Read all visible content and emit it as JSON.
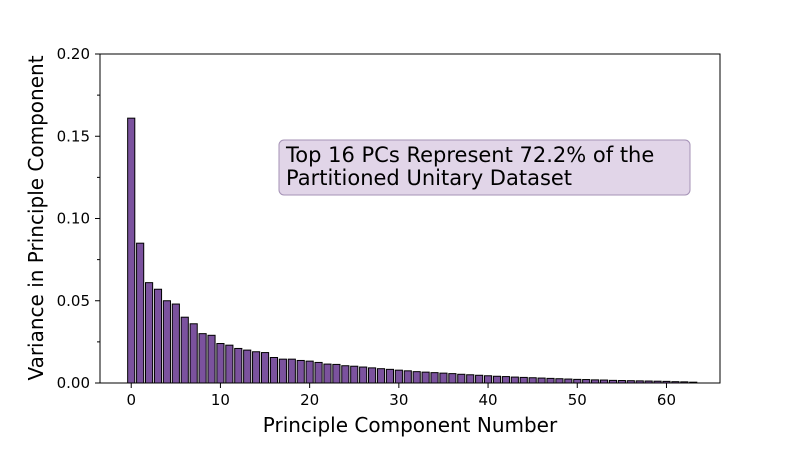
{
  "chart_data": {
    "type": "bar",
    "xlabel": "Principle Component Number",
    "ylabel": "Variance in Principle Component",
    "xlim": [
      -3.5,
      66
    ],
    "ylim": [
      0,
      0.2
    ],
    "xticks": [
      0,
      10,
      20,
      30,
      40,
      50,
      60
    ],
    "xtick_labels": [
      "0",
      "10",
      "20",
      "30",
      "40",
      "50",
      "60"
    ],
    "yticks": [
      0,
      0.05,
      0.1,
      0.15,
      0.2
    ],
    "ytick_labels": [
      "0.00",
      "0.05",
      "0.10",
      "0.15",
      "0.20"
    ],
    "grid": false,
    "bar_color": "#7b529e",
    "bar_edge_color": "#000000",
    "annotation": {
      "lines": [
        "Top 16 PCs Represent 72.2% of the",
        "Partitioned Unitary Dataset"
      ],
      "box_color": "#e1d5e8",
      "box_edge_color": "#a592b6"
    },
    "x": [
      0,
      1,
      2,
      3,
      4,
      5,
      6,
      7,
      8,
      9,
      10,
      11,
      12,
      13,
      14,
      15,
      16,
      17,
      18,
      19,
      20,
      21,
      22,
      23,
      24,
      25,
      26,
      27,
      28,
      29,
      30,
      31,
      32,
      33,
      34,
      35,
      36,
      37,
      38,
      39,
      40,
      41,
      42,
      43,
      44,
      45,
      46,
      47,
      48,
      49,
      50,
      51,
      52,
      53,
      54,
      55,
      56,
      57,
      58,
      59,
      60,
      61,
      62,
      63
    ],
    "values": [
      0.161,
      0.085,
      0.061,
      0.057,
      0.05,
      0.048,
      0.04,
      0.036,
      0.03,
      0.029,
      0.024,
      0.023,
      0.021,
      0.02,
      0.019,
      0.0185,
      0.0155,
      0.0145,
      0.0145,
      0.0137,
      0.0133,
      0.0125,
      0.0115,
      0.0113,
      0.0105,
      0.0102,
      0.0097,
      0.0092,
      0.0087,
      0.0083,
      0.0078,
      0.0074,
      0.0069,
      0.0066,
      0.0063,
      0.006,
      0.0057,
      0.0053,
      0.005,
      0.0047,
      0.0044,
      0.0041,
      0.0039,
      0.0036,
      0.0034,
      0.0032,
      0.003,
      0.0028,
      0.0026,
      0.0024,
      0.0022,
      0.0021,
      0.0019,
      0.0018,
      0.0016,
      0.0015,
      0.0014,
      0.0013,
      0.0012,
      0.0011,
      0.001,
      0.0008,
      0.0007,
      0.0005
    ]
  }
}
